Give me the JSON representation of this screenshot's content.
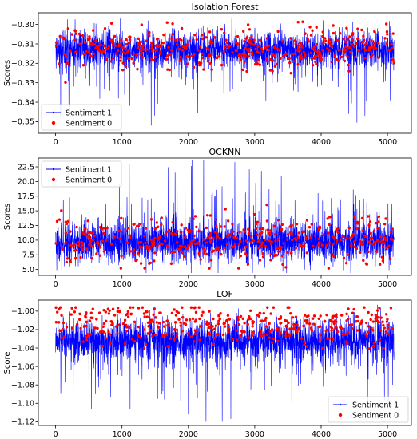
{
  "chart_data": [
    {
      "type": "line",
      "title": "Isolation Forest",
      "xlabel": "",
      "ylabel": "Scores",
      "xlim": [
        -260,
        5360
      ],
      "ylim": [
        -0.356,
        -0.294
      ],
      "xticks": [
        0,
        1000,
        2000,
        3000,
        4000,
        5000
      ],
      "yticks": [
        -0.35,
        -0.34,
        -0.33,
        -0.32,
        -0.31,
        -0.3
      ],
      "ytick_labels": [
        "−0.35",
        "−0.34",
        "−0.33",
        "−0.32",
        "−0.31",
        "−0.30"
      ],
      "legend_position": "lower-left",
      "n_points": 5100,
      "series": [
        {
          "name": "Sentiment 1",
          "color": "#0000ff",
          "marker": "line",
          "center": -0.313,
          "spread": 0.0045,
          "low": -0.352,
          "high": -0.297,
          "outliers_low": [
            [
              75,
              -0.348
            ],
            [
              1440,
              -0.3525
            ],
            [
              2130,
              -0.331
            ],
            [
              3680,
              -0.345
            ],
            [
              4540,
              -0.3505
            ],
            [
              4660,
              -0.347
            ],
            [
              5040,
              -0.339
            ]
          ],
          "outliers_high": []
        },
        {
          "name": "Sentiment 0",
          "color": "#ff0000",
          "marker": "point",
          "count": 420,
          "center": -0.312,
          "spread": 0.0055,
          "low": -0.345,
          "high": -0.298
        }
      ]
    },
    {
      "type": "line",
      "title": "OCKNN",
      "xlabel": "",
      "ylabel": "Scores",
      "xlim": [
        -260,
        5360
      ],
      "ylim": [
        4.0,
        24.0
      ],
      "xticks": [
        0,
        1000,
        2000,
        3000,
        4000,
        5000
      ],
      "yticks": [
        5.0,
        7.5,
        10.0,
        12.5,
        15.0,
        17.5,
        20.0,
        22.5
      ],
      "ytick_labels": [
        "5.0",
        "7.5",
        "10.0",
        "12.5",
        "15.0",
        "17.5",
        "20.0",
        "22.5"
      ],
      "legend_position": "top-left",
      "n_points": 5100,
      "series": [
        {
          "name": "Sentiment 1",
          "color": "#0000ff",
          "marker": "line",
          "center": 9.6,
          "spread": 1.6,
          "low": 4.4,
          "high": 23.6,
          "outliers_low": [],
          "outliers_high": [
            [
              1110,
              23.0
            ],
            [
              1800,
              21.5
            ],
            [
              1830,
              23.6
            ],
            [
              2230,
              23.6
            ],
            [
              2700,
              23.3
            ],
            [
              3100,
              21.8
            ],
            [
              3400,
              21.0
            ]
          ]
        },
        {
          "name": "Sentiment 0",
          "color": "#ff0000",
          "marker": "point",
          "count": 420,
          "center": 10.0,
          "spread": 2.0,
          "low": 5.2,
          "high": 20.0
        }
      ]
    },
    {
      "type": "line",
      "title": "LOF",
      "xlabel": "",
      "ylabel": "Score",
      "xlim": [
        -260,
        5360
      ],
      "ylim": [
        -1.124,
        -0.988
      ],
      "xticks": [
        0,
        1000,
        2000,
        3000,
        4000,
        5000
      ],
      "yticks": [
        -1.12,
        -1.1,
        -1.08,
        -1.06,
        -1.04,
        -1.02,
        -1.0
      ],
      "ytick_labels": [
        "−1.12",
        "−1.10",
        "−1.08",
        "−1.06",
        "−1.04",
        "−1.02",
        "−1.00"
      ],
      "legend_position": "lower-right",
      "n_points": 5100,
      "series": [
        {
          "name": "Sentiment 1",
          "color": "#0000ff",
          "marker": "line",
          "center": -1.032,
          "spread": 0.011,
          "low": -1.12,
          "high": -0.993,
          "outliers_low": [
            [
              540,
              -1.106
            ],
            [
              830,
              -1.093
            ],
            [
              1640,
              -1.096
            ],
            [
              2000,
              -1.112
            ],
            [
              2640,
              -1.117
            ],
            [
              4700,
              -1.105
            ]
          ],
          "outliers_high": []
        },
        {
          "name": "Sentiment 0",
          "color": "#ff0000",
          "marker": "point",
          "count": 420,
          "center": -1.014,
          "spread": 0.011,
          "low": -1.05,
          "high": -0.996
        }
      ]
    }
  ]
}
